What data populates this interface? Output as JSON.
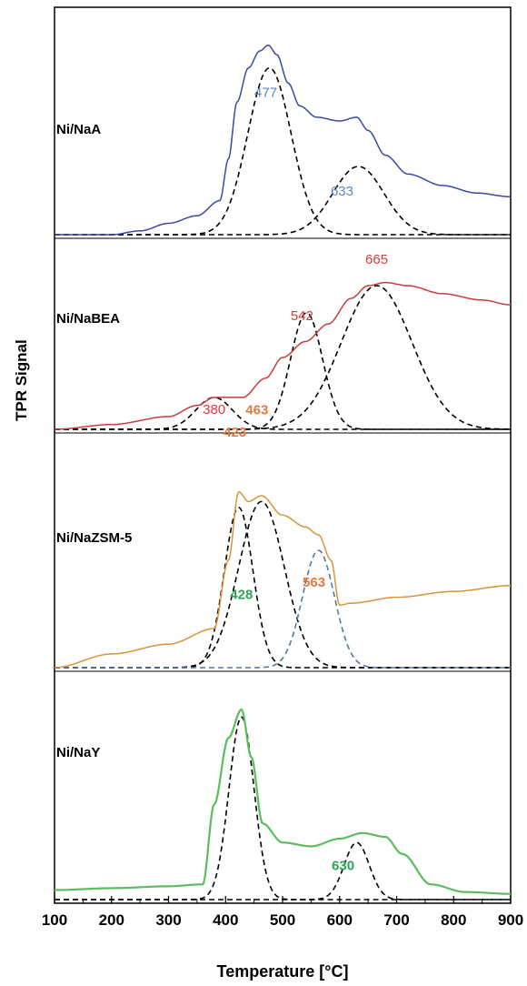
{
  "chart_data": {
    "type": "line",
    "title": "",
    "xlabel": "Temperature [°C]",
    "ylabel": "TPR Signal",
    "xlim": [
      100,
      900
    ],
    "xticks": [
      100,
      200,
      300,
      400,
      500,
      600,
      700,
      800,
      900
    ],
    "grid": false,
    "panels": [
      {
        "label": "Ni/NaA",
        "color": "#3a48a8",
        "label_color": "#5b86c4",
        "baseline": [
          [
            100,
            0.0
          ],
          [
            200,
            0.0
          ],
          [
            250,
            0.02
          ],
          [
            300,
            0.06
          ],
          [
            350,
            0.1
          ],
          [
            390,
            0.18
          ],
          [
            405,
            0.4
          ],
          [
            420,
            0.7
          ],
          [
            440,
            0.88
          ],
          [
            460,
            0.97
          ],
          [
            475,
            1.0
          ],
          [
            490,
            0.95
          ],
          [
            510,
            0.8
          ],
          [
            530,
            0.68
          ],
          [
            560,
            0.62
          ],
          [
            600,
            0.6
          ],
          [
            630,
            0.62
          ],
          [
            650,
            0.55
          ],
          [
            680,
            0.42
          ],
          [
            720,
            0.32
          ],
          [
            780,
            0.26
          ],
          [
            840,
            0.22
          ],
          [
            900,
            0.2
          ]
        ],
        "peaks": [
          {
            "label": "477",
            "center": 477,
            "height": 0.88,
            "width": 38
          },
          {
            "label": "633",
            "center": 633,
            "height": 0.36,
            "width": 45
          }
        ]
      },
      {
        "label": "Ni/NaBEA",
        "color": "#cc3b3b",
        "label_color": "#d73c3c",
        "baseline": [
          [
            100,
            0.0
          ],
          [
            200,
            0.03
          ],
          [
            300,
            0.08
          ],
          [
            350,
            0.15
          ],
          [
            380,
            0.2
          ],
          [
            430,
            0.2
          ],
          [
            470,
            0.32
          ],
          [
            500,
            0.45
          ],
          [
            540,
            0.55
          ],
          [
            580,
            0.66
          ],
          [
            620,
            0.82
          ],
          [
            650,
            0.9
          ],
          [
            680,
            0.92
          ],
          [
            720,
            0.9
          ],
          [
            780,
            0.85
          ],
          [
            850,
            0.81
          ],
          [
            900,
            0.78
          ]
        ],
        "peaks": [
          {
            "label": "380",
            "center": 380,
            "height": 0.2,
            "width": 32
          },
          {
            "label": "542",
            "center": 542,
            "height": 0.73,
            "width": 28
          },
          {
            "label": "665",
            "center": 665,
            "height": 0.9,
            "width": 62
          }
        ]
      },
      {
        "label": "Ni/NaZSM-5",
        "color": "#d9953a",
        "label_color": "#e67a3c",
        "baseline": [
          [
            100,
            0.0
          ],
          [
            200,
            0.07
          ],
          [
            300,
            0.12
          ],
          [
            380,
            0.2
          ],
          [
            405,
            0.55
          ],
          [
            423,
            0.9
          ],
          [
            440,
            0.85
          ],
          [
            463,
            0.88
          ],
          [
            500,
            0.78
          ],
          [
            540,
            0.72
          ],
          [
            563,
            0.68
          ],
          [
            585,
            0.55
          ],
          [
            600,
            0.32
          ],
          [
            620,
            0.33
          ],
          [
            700,
            0.36
          ],
          [
            800,
            0.39
          ],
          [
            900,
            0.42
          ]
        ],
        "peaks": [
          {
            "label": "423",
            "center": 423,
            "height": 0.82,
            "width": 25
          },
          {
            "label": "463",
            "center": 463,
            "height": 0.85,
            "width": 40
          },
          {
            "label": "563",
            "center": 563,
            "height": 0.6,
            "width": 28
          }
        ]
      },
      {
        "label": "Ni/NaY",
        "color": "#5cbd5c",
        "label_color": "#2aa558",
        "baseline": [
          [
            100,
            0.05
          ],
          [
            200,
            0.06
          ],
          [
            300,
            0.07
          ],
          [
            360,
            0.08
          ],
          [
            380,
            0.5
          ],
          [
            405,
            0.85
          ],
          [
            428,
            1.0
          ],
          [
            445,
            0.75
          ],
          [
            465,
            0.4
          ],
          [
            500,
            0.3
          ],
          [
            550,
            0.28
          ],
          [
            600,
            0.32
          ],
          [
            640,
            0.35
          ],
          [
            680,
            0.33
          ],
          [
            710,
            0.24
          ],
          [
            760,
            0.08
          ],
          [
            820,
            0.04
          ],
          [
            900,
            0.03
          ]
        ],
        "peaks": [
          {
            "label": "428",
            "center": 428,
            "height": 0.96,
            "width": 22
          },
          {
            "label": "630",
            "center": 630,
            "height": 0.3,
            "width": 22
          }
        ]
      }
    ]
  }
}
